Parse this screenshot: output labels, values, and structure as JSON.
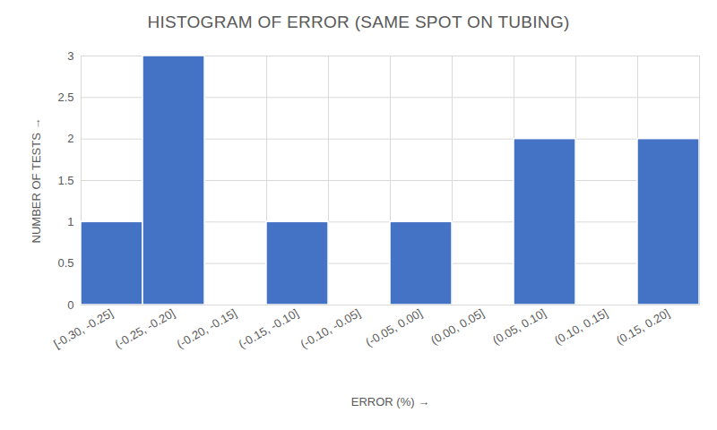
{
  "chart_data": {
    "type": "histogram",
    "title": "HISTOGRAM OF ERROR (SAME SPOT ON TUBING)",
    "x_label": "ERROR (%)",
    "y_label": "NUMBER OF TESTS",
    "bins": [
      -0.3,
      -0.25,
      -0.2,
      -0.15,
      -0.1,
      -0.05,
      0.0,
      0.05,
      0.1,
      0.15,
      0.2
    ],
    "categories": [
      "[-0.30, -0.25]",
      "(-0.25, -0.20]",
      "(-0.20, -0.15]",
      "(-0.15, -0.10]",
      "(-0.10, -0.05]",
      "(-0.05, 0.00]",
      "(0.00, 0.05]",
      "(0.05, 0.10]",
      "(0.10, 0.15]",
      "(0.15, 0.20]"
    ],
    "values": [
      1,
      3,
      0,
      1,
      0,
      1,
      0,
      2,
      0,
      2
    ],
    "color": "#4472c4",
    "xlim": [
      -0.3,
      0.2
    ],
    "ylim": [
      0,
      3
    ],
    "yticks": [
      0,
      0.5,
      1,
      1.5,
      2,
      2.5,
      3
    ],
    "grid": true
  }
}
